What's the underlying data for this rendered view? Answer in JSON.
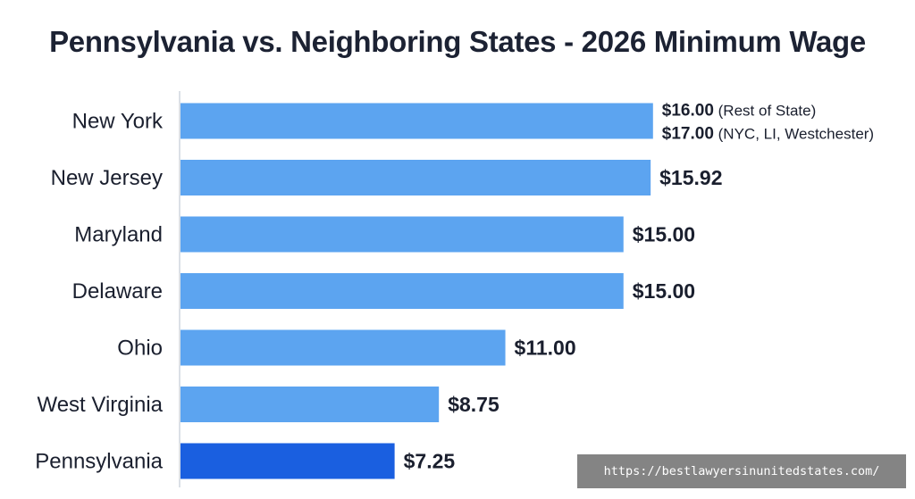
{
  "chart_data": {
    "type": "bar",
    "orientation": "horizontal",
    "title": "Pennsylvania vs. Neighboring States - 2026 Minimum Wage",
    "categories": [
      "New York",
      "New Jersey",
      "Maryland",
      "Delaware",
      "Ohio",
      "West Virginia",
      "Pennsylvania"
    ],
    "values": [
      16.0,
      15.92,
      15.0,
      15.0,
      11.0,
      8.75,
      7.25
    ],
    "value_labels": [
      [
        {
          "amount": "$16.00",
          "note": "(Rest of State)"
        },
        {
          "amount": "$17.00",
          "note": "(NYC, LI, Westchester)"
        }
      ],
      [
        {
          "amount": "$15.92",
          "note": ""
        }
      ],
      [
        {
          "amount": "$15.00",
          "note": ""
        }
      ],
      [
        {
          "amount": "$15.00",
          "note": ""
        }
      ],
      [
        {
          "amount": "$11.00",
          "note": ""
        }
      ],
      [
        {
          "amount": "$8.75",
          "note": ""
        }
      ],
      [
        {
          "amount": "$7.25",
          "note": ""
        }
      ]
    ],
    "highlight": "Pennsylvania",
    "colors": {
      "bar": "#5ca4f0",
      "highlight": "#1a5fe0",
      "axis": "#cfd5de"
    },
    "xlabel": "",
    "ylabel": "",
    "grid": false,
    "legend": "none"
  },
  "watermark": "https://bestlawyersinunitedstates.com/"
}
